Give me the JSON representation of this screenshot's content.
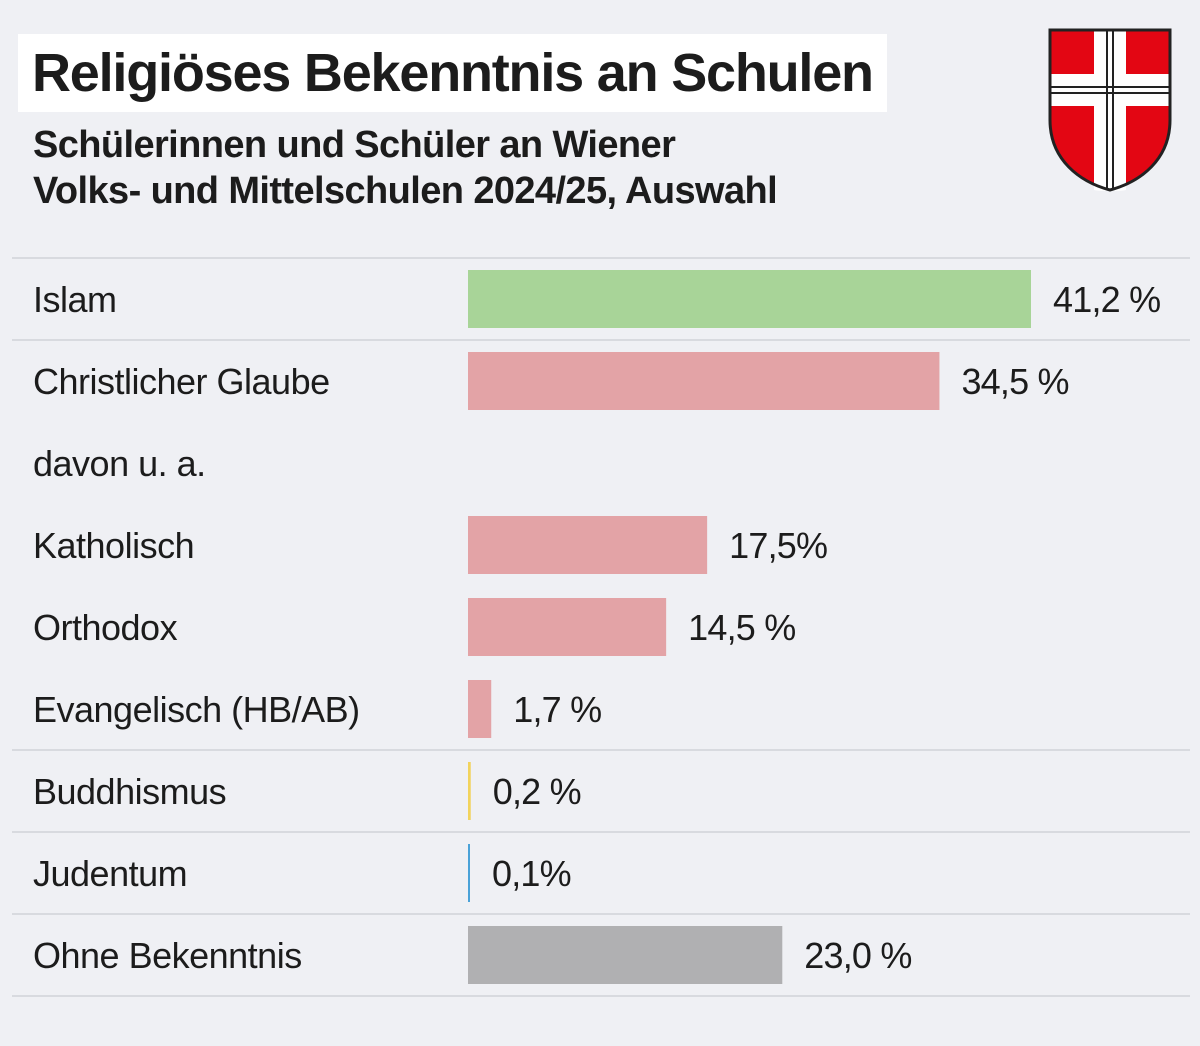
{
  "title": "Religiöses Bekenntnis an Schulen",
  "subtitle_line1": "Schülerinnen und Schüler an Wiener",
  "subtitle_line2": "Volks- und Mittelschulen 2024/25, Auswahl",
  "crest_icon": "vienna-coat-of-arms-icon",
  "colors": {
    "background": "#eff0f4",
    "islam": "#a8d498",
    "christian": "#e3a3a6",
    "buddhism": "#f2d35c",
    "judaism": "#4aa2d8",
    "none": "#b0b0b2",
    "divider": "#d8dadf",
    "crest_red": "#e30613"
  },
  "chart_data": {
    "type": "bar",
    "orientation": "horizontal",
    "unit": "%",
    "xlim": [
      0,
      41.2
    ],
    "title": "Religiöses Bekenntnis an Schulen",
    "rows": [
      {
        "label": "Islam",
        "value": 41.2,
        "value_label": "41,2 %",
        "color": "#a8d498",
        "divider_after": true
      },
      {
        "label": "Christlicher Glaube",
        "value": 34.5,
        "value_label": "34,5 %",
        "color": "#e3a3a6",
        "divider_after": false
      },
      {
        "label": "davon u. a.",
        "value": null,
        "value_label": "",
        "color": "",
        "divider_after": false
      },
      {
        "label": "Katholisch",
        "value": 17.5,
        "value_label": "17,5%",
        "color": "#e3a3a6",
        "divider_after": false
      },
      {
        "label": "Orthodox",
        "value": 14.5,
        "value_label": "14,5 %",
        "color": "#e3a3a6",
        "divider_after": false
      },
      {
        "label": "Evangelisch (HB/AB)",
        "value": 1.7,
        "value_label": "1,7 %",
        "color": "#e3a3a6",
        "divider_after": true
      },
      {
        "label": "Buddhismus",
        "value": 0.2,
        "value_label": "0,2 %",
        "color": "#f2d35c",
        "divider_after": true
      },
      {
        "label": "Judentum",
        "value": 0.1,
        "value_label": "0,1%",
        "color": "#4aa2d8",
        "divider_after": true
      },
      {
        "label": "Ohne Bekenntnis",
        "value": 23.0,
        "value_label": "23,0 %",
        "color": "#b0b0b2",
        "divider_after": true
      }
    ]
  }
}
